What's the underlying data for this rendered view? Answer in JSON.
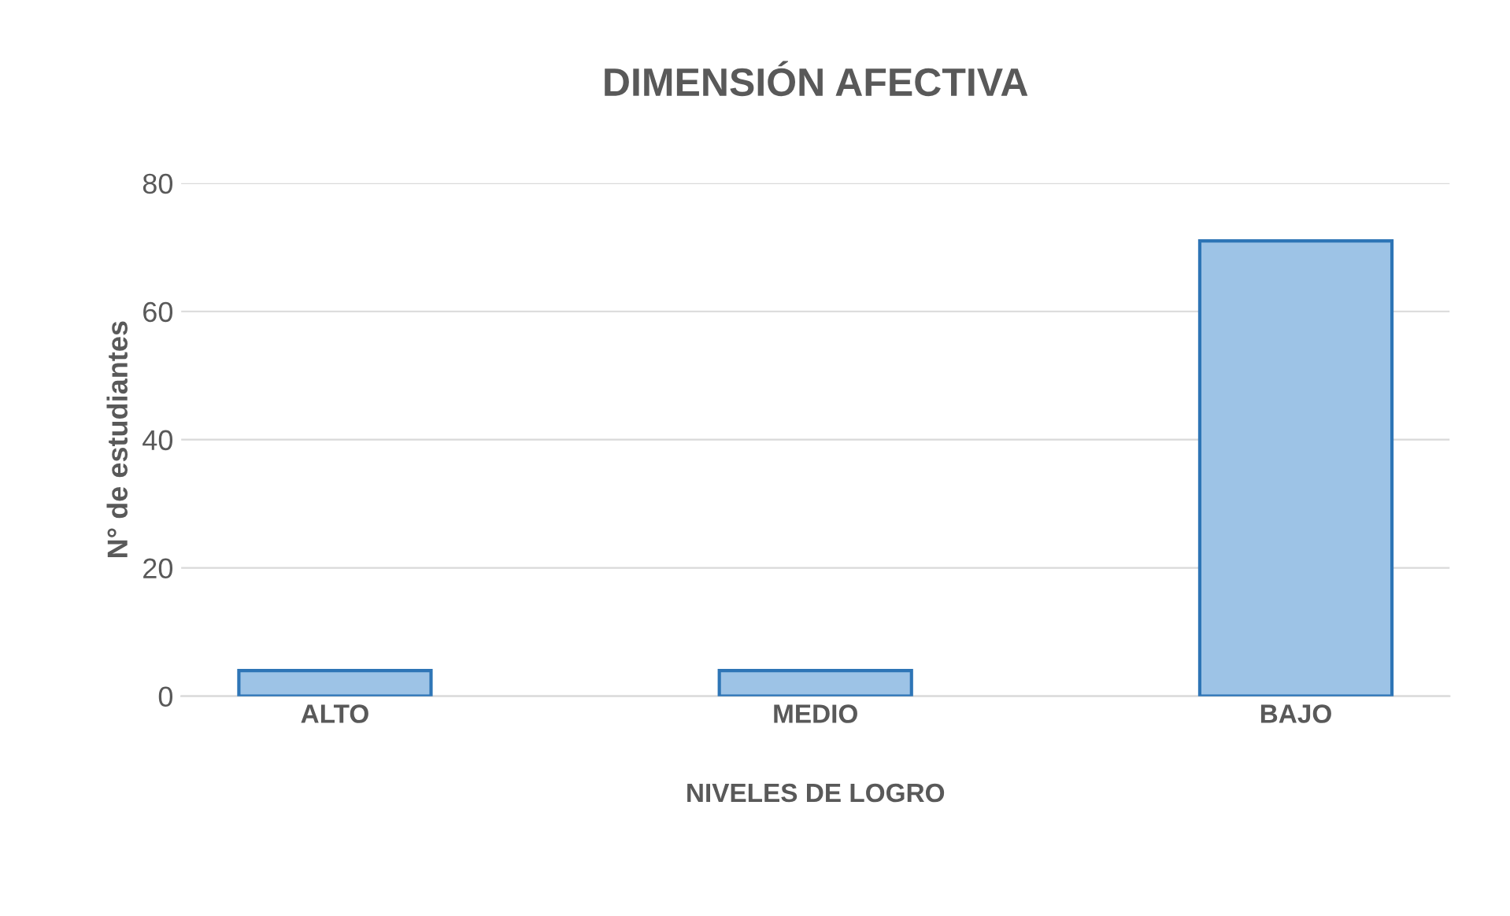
{
  "chart_data": {
    "type": "bar",
    "title": "DIMENSIÓN AFECTIVA",
    "xlabel": "NIVELES DE LOGRO",
    "ylabel": "N° de estudiantes",
    "categories": [
      "ALTO",
      "MEDIO",
      "BAJO"
    ],
    "series": [
      {
        "color": "#9dc3e6",
        "values": [
          4,
          4,
          71
        ]
      }
    ],
    "ylim": [
      0,
      80
    ],
    "yticks": [
      0,
      20,
      40,
      60,
      80
    ],
    "grid": "y",
    "legend": false
  }
}
